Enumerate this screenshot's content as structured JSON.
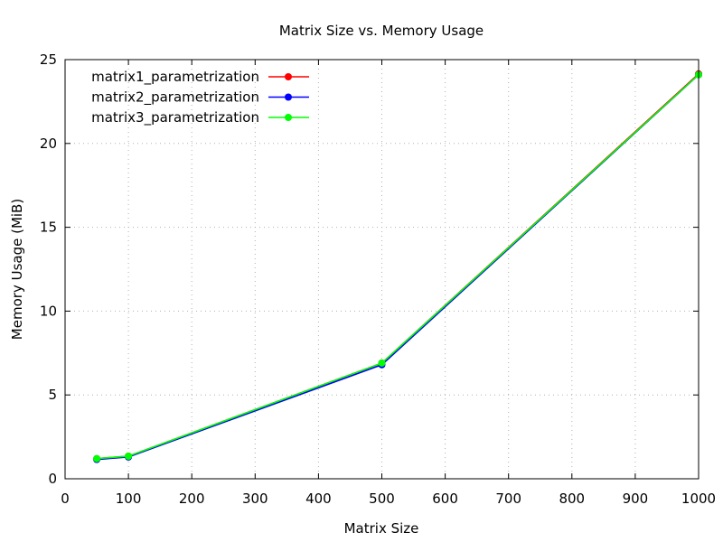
{
  "chart_data": {
    "type": "line",
    "title": "Matrix Size vs. Memory Usage",
    "xlabel": "Matrix Size",
    "ylabel": "Memory Usage (MiB)",
    "xlim": [
      0,
      1000
    ],
    "ylim": [
      0,
      25
    ],
    "x_ticks": [
      0,
      100,
      200,
      300,
      400,
      500,
      600,
      700,
      800,
      900,
      1000
    ],
    "y_ticks": [
      0,
      5,
      10,
      15,
      20,
      25
    ],
    "grid": true,
    "legend_position": "top-left",
    "x": [
      50,
      100,
      500,
      1000
    ],
    "series": [
      {
        "name": "matrix1_parametrization",
        "color": "#ff0000",
        "values": [
          1.2,
          1.35,
          6.9,
          24.15
        ]
      },
      {
        "name": "matrix2_parametrization",
        "color": "#0000ff",
        "values": [
          1.15,
          1.3,
          6.8,
          24.1
        ]
      },
      {
        "name": "matrix3_parametrization",
        "color": "#00ff00",
        "values": [
          1.2,
          1.35,
          6.9,
          24.1
        ]
      }
    ]
  }
}
